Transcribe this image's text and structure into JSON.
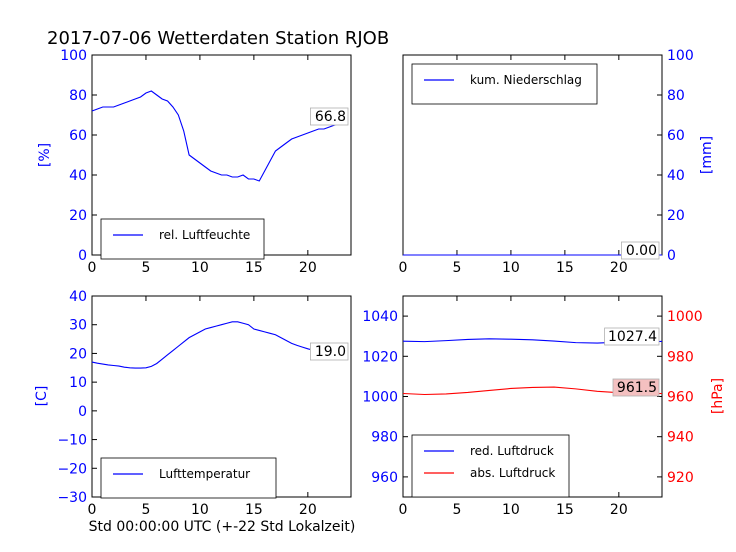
{
  "title": "2017-07-06 Wetterdaten Station RJOB",
  "colors": {
    "blue": "#0000ff",
    "red": "#ff0000",
    "black": "#000000",
    "label_bg_red": "#f4c0c0"
  },
  "chart_data": [
    {
      "id": "humidity",
      "type": "line",
      "xlim": [
        0,
        24
      ],
      "ylim": [
        0,
        100
      ],
      "x_ticks": [
        0,
        5,
        10,
        15,
        20
      ],
      "y_ticks": [
        0,
        20,
        40,
        60,
        80,
        100
      ],
      "ylabel": "[%]",
      "legend": "bottom-left",
      "last_value_label": "66.8",
      "series": [
        {
          "name": "rel. Luftfeuchte",
          "color": "#0000ff",
          "x": [
            0,
            0.5,
            1,
            1.5,
            2,
            2.5,
            3,
            3.5,
            4,
            4.5,
            5,
            5.5,
            6,
            6.5,
            7,
            7.5,
            8,
            8.5,
            9,
            9.5,
            10,
            10.5,
            11,
            11.5,
            12,
            12.5,
            13,
            13.5,
            14,
            14.5,
            15,
            15.5,
            16,
            16.5,
            17,
            17.5,
            18,
            18.5,
            19,
            19.5,
            20,
            20.5,
            21,
            21.5,
            22,
            22.5,
            23,
            23.5
          ],
          "y": [
            72,
            73,
            74,
            74,
            74,
            75,
            76,
            77,
            78,
            79,
            81,
            82,
            80,
            78,
            77,
            74,
            70,
            62,
            50,
            48,
            46,
            44,
            42,
            41,
            40,
            40,
            39,
            39,
            40,
            38,
            38,
            37,
            42,
            47,
            52,
            54,
            56,
            58,
            59,
            60,
            61,
            62,
            63,
            63,
            64,
            65,
            66,
            66.8
          ]
        }
      ]
    },
    {
      "id": "precip",
      "type": "line",
      "xlim": [
        0,
        24
      ],
      "ylim": [
        0,
        100
      ],
      "x_ticks": [
        0,
        5,
        10,
        15,
        20
      ],
      "y_ticks": [
        0,
        20,
        40,
        60,
        80,
        100
      ],
      "ylabel": "[mm]",
      "legend": "top-left",
      "last_value_label": "0.00",
      "series": [
        {
          "name": "kum. Niederschlag",
          "color": "#0000ff",
          "x": [
            0,
            24
          ],
          "y": [
            0,
            0
          ]
        }
      ]
    },
    {
      "id": "temperature",
      "type": "line",
      "xlim": [
        0,
        24
      ],
      "ylim": [
        -30,
        40
      ],
      "x_ticks": [
        0,
        5,
        10,
        15,
        20
      ],
      "y_ticks": [
        -30,
        -20,
        -10,
        0,
        10,
        20,
        30,
        40
      ],
      "ylabel": "[C]",
      "xlabel": "Std 00:00:00 UTC (+-22 Std Lokalzeit)",
      "legend": "bottom-left",
      "last_value_label": "19.0",
      "series": [
        {
          "name": "Lufttemperatur",
          "color": "#0000ff",
          "x": [
            0,
            0.5,
            1,
            1.5,
            2,
            2.5,
            3,
            3.5,
            4,
            4.5,
            5,
            5.5,
            6,
            6.5,
            7,
            7.5,
            8,
            8.5,
            9,
            9.5,
            10,
            10.5,
            11,
            11.5,
            12,
            12.5,
            13,
            13.5,
            14,
            14.5,
            15,
            15.5,
            16,
            16.5,
            17,
            17.5,
            18,
            18.5,
            19,
            19.5,
            20,
            20.5,
            21,
            21.5,
            22,
            22.5,
            23,
            23.5
          ],
          "y": [
            17,
            16.6,
            16.3,
            16,
            15.8,
            15.6,
            15.2,
            15,
            14.9,
            14.9,
            15,
            15.5,
            16.5,
            18,
            19.5,
            21,
            22.5,
            24,
            25.5,
            26.5,
            27.5,
            28.5,
            29,
            29.5,
            30,
            30.5,
            31,
            31,
            30.5,
            30,
            28.5,
            28,
            27.5,
            27,
            26.5,
            25.5,
            24.5,
            23.5,
            22.8,
            22.2,
            21.6,
            21.1,
            20.6,
            20.2,
            19.8,
            19.5,
            19.2,
            19.0
          ]
        }
      ]
    },
    {
      "id": "pressure",
      "type": "line",
      "xlim": [
        0,
        24
      ],
      "ylim_left": [
        950,
        1050
      ],
      "ylim_right": [
        910,
        1010
      ],
      "x_ticks": [
        0,
        5,
        10,
        15,
        20
      ],
      "y_ticks_left": [
        960,
        980,
        1000,
        1020,
        1040
      ],
      "y_ticks_right": [
        920,
        940,
        960,
        980,
        1000
      ],
      "ylabel_right": "[hPa]",
      "legend": "bottom-left",
      "series": [
        {
          "name": "red. Luftdruck",
          "color": "#0000ff",
          "axis": "left",
          "last_value_label": "1027.4",
          "x": [
            0,
            2,
            4,
            6,
            8,
            10,
            12,
            14,
            16,
            18,
            20,
            22,
            24
          ],
          "y": [
            1027.5,
            1027.3,
            1027.8,
            1028.4,
            1028.7,
            1028.5,
            1028.2,
            1027.6,
            1026.8,
            1026.6,
            1027.0,
            1027.3,
            1027.4
          ]
        },
        {
          "name": "abs. Luftdruck",
          "color": "#ff0000",
          "axis": "right",
          "last_value_label": "961.5",
          "x": [
            0,
            2,
            4,
            6,
            8,
            10,
            12,
            14,
            16,
            18,
            20,
            22,
            24
          ],
          "y": [
            961.5,
            961.0,
            961.3,
            962.0,
            963.0,
            964.0,
            964.5,
            964.7,
            963.8,
            962.6,
            961.9,
            961.6,
            961.5
          ]
        }
      ]
    }
  ]
}
